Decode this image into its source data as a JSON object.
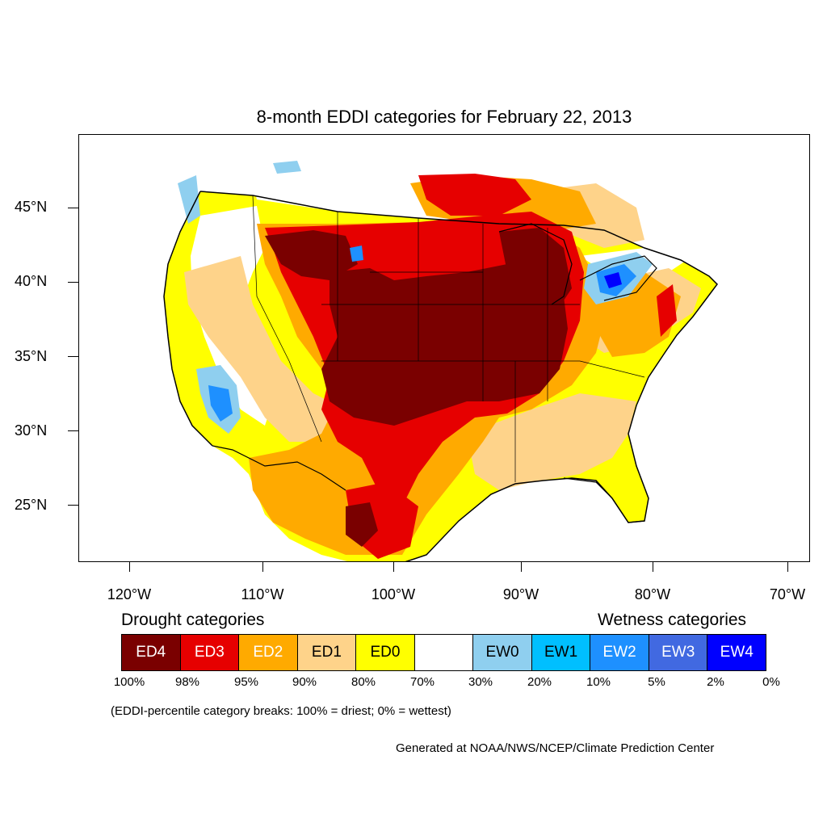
{
  "title": "8-month EDDI categories for February 22, 2013",
  "map": {
    "lat_labels": [
      "45°N",
      "40°N",
      "35°N",
      "30°N",
      "25°N"
    ],
    "lon_labels": [
      "120°W",
      "110°W",
      "100°W",
      "90°W",
      "80°W",
      "70°W"
    ],
    "colors": {
      "ED4": "#7a0000",
      "ED3": "#e60000",
      "ED2": "#ffaa00",
      "ED1": "#fed38a",
      "ED0": "#ffff00",
      "neutral": "#ffffff",
      "EW0": "#8fcfef",
      "EW1": "#00bfff",
      "EW2": "#1e90ff",
      "EW3": "#4169e1",
      "EW4": "#0000ff"
    }
  },
  "legend": {
    "drought_heading": "Drought categories",
    "wetness_heading": "Wetness categories",
    "categories": [
      {
        "label": "ED4",
        "color": "#7a0000",
        "text_color": "#ffffff"
      },
      {
        "label": "ED3",
        "color": "#e60000",
        "text_color": "#ffffff"
      },
      {
        "label": "ED2",
        "color": "#ffaa00",
        "text_color": "#ffffff"
      },
      {
        "label": "ED1",
        "color": "#fed38a",
        "text_color": "#000000"
      },
      {
        "label": "ED0",
        "color": "#ffff00",
        "text_color": "#000000"
      },
      {
        "label": "",
        "color": "#ffffff",
        "text_color": "#000000"
      },
      {
        "label": "EW0",
        "color": "#8fcfef",
        "text_color": "#000000"
      },
      {
        "label": "EW1",
        "color": "#00bfff",
        "text_color": "#000000"
      },
      {
        "label": "EW2",
        "color": "#1e90ff",
        "text_color": "#ffffff"
      },
      {
        "label": "EW3",
        "color": "#4169e1",
        "text_color": "#ffffff"
      },
      {
        "label": "EW4",
        "color": "#0000ff",
        "text_color": "#ffffff"
      }
    ],
    "percentiles": [
      "100%",
      "98%",
      "95%",
      "90%",
      "80%",
      "70%",
      "30%",
      "20%",
      "10%",
      "5%",
      "2%",
      "0%"
    ]
  },
  "note": "(EDDI-percentile category breaks: 100% = driest; 0% = wettest)",
  "credit": "Generated at NOAA/NWS/NCEP/Climate Prediction Center"
}
